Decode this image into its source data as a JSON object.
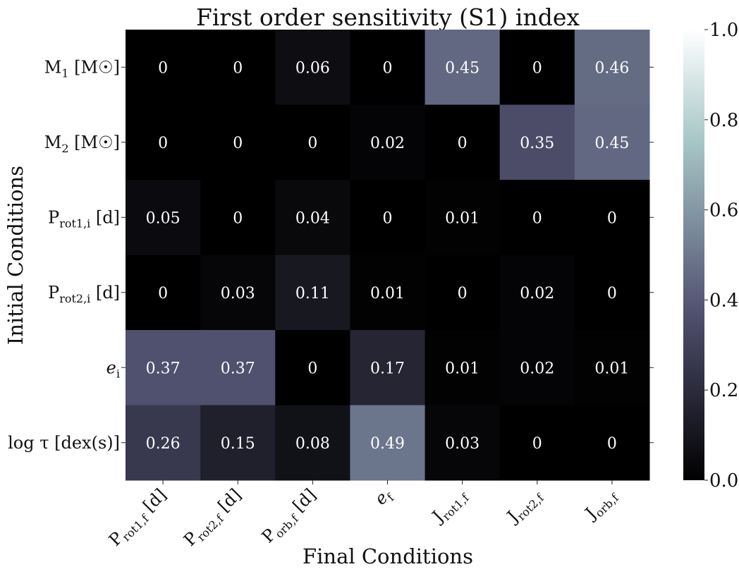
{
  "chart_data": {
    "type": "heatmap",
    "title": "First order sensitivity (S1) index",
    "xlabel": "Final Conditions",
    "ylabel": "Initial Conditions",
    "x_tick_labels": [
      {
        "main": "P",
        "sub": "rot1,f",
        "suffix": " [d]"
      },
      {
        "main": "P",
        "sub": "rot2,f",
        "suffix": " [d]"
      },
      {
        "main": "P",
        "sub": "orb,f",
        "suffix": " [d]"
      },
      {
        "main": "e",
        "sub": "f",
        "suffix": "",
        "italic": true
      },
      {
        "main": "J",
        "sub": "rot1,f",
        "suffix": ""
      },
      {
        "main": "J",
        "sub": "rot2,f",
        "suffix": ""
      },
      {
        "main": "J",
        "sub": "orb,f",
        "suffix": ""
      }
    ],
    "y_tick_labels": [
      {
        "main": "M",
        "sub": "1",
        "suffix": " [M☉]"
      },
      {
        "main": "M",
        "sub": "2",
        "suffix": " [M☉]"
      },
      {
        "main": "P",
        "sub": "rot1,i",
        "suffix": " [d]"
      },
      {
        "main": "P",
        "sub": "rot2,i",
        "suffix": " [d]"
      },
      {
        "main": "e",
        "sub": "i",
        "suffix": "",
        "italic": true
      },
      {
        "main": "log τ",
        "sub": "",
        "suffix": " [dex(s)]"
      }
    ],
    "values": [
      [
        0,
        0,
        0.06,
        0,
        0.45,
        0,
        0.46
      ],
      [
        0,
        0,
        0,
        0.02,
        0,
        0.35,
        0.45
      ],
      [
        0.05,
        0,
        0.04,
        0,
        0.01,
        0,
        0
      ],
      [
        0,
        0.03,
        0.11,
        0.01,
        0,
        0.02,
        0
      ],
      [
        0.37,
        0.37,
        0,
        0.17,
        0.01,
        0.02,
        0.01
      ],
      [
        0.26,
        0.15,
        0.08,
        0.49,
        0.03,
        0,
        0
      ]
    ],
    "colorbar": {
      "range": [
        0.0,
        1.0
      ],
      "ticks": [
        "0.0",
        "0.2",
        "0.4",
        "0.6",
        "0.8",
        "1.0"
      ],
      "colormap": "bone"
    }
  }
}
